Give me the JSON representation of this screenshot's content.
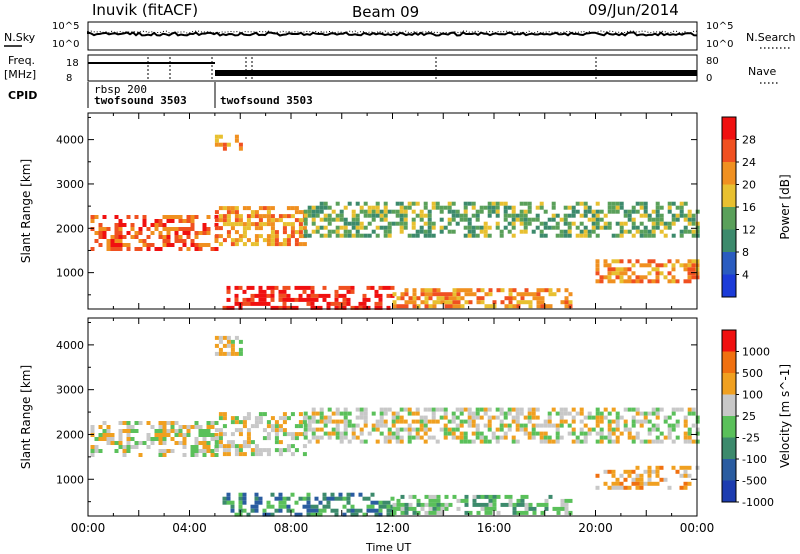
{
  "header": {
    "station": "Inuvik (fitACF)",
    "beam": "Beam 09",
    "date": "09/Jun/2014"
  },
  "summary": {
    "nsky_label": "N.Sky",
    "nsearch_label": "N.Search",
    "freq_label_line1": "Freq.",
    "freq_label_line2": "[MHz]",
    "nave_label": "Nave",
    "cpid_label": "CPID",
    "noise_ticks": [
      "10^5",
      "10^0"
    ],
    "freq_ticks": [
      "18",
      "8"
    ],
    "nave_ticks": [
      "80",
      "0"
    ],
    "cpid_segments": [
      {
        "line1": "rbsp 200",
        "line2": "twofsound 3503"
      },
      {
        "line1": "",
        "line2": "twofsound 3503"
      }
    ]
  },
  "chart_data": [
    {
      "type": "heatmap",
      "name": "power-panel",
      "ylabel": "Slant Range [km]",
      "y_ticks": [
        1000,
        2000,
        3000,
        4000
      ],
      "ylim": [
        180,
        4600
      ],
      "xlim": [
        0,
        24
      ],
      "colorbar": {
        "label": "Power [dB]",
        "ticks": [
          "4",
          "8",
          "12",
          "16",
          "20",
          "24",
          "28"
        ],
        "colors": [
          "#1c3cd8",
          "#2a5cc0",
          "#3c8a6c",
          "#5aa05a",
          "#e8c030",
          "#f09020",
          "#f05020",
          "#f01010"
        ]
      },
      "echo_bands": [
        {
          "t0": 0.1,
          "t1": 5.0,
          "r0": 1500,
          "r1": 2300,
          "level": 6
        },
        {
          "t0": 5.0,
          "t1": 8.5,
          "r0": 1600,
          "r1": 2500,
          "level": 5
        },
        {
          "t0": 8.5,
          "t1": 24.0,
          "r0": 1800,
          "r1": 2600,
          "level": 3
        },
        {
          "t0": 5.3,
          "t1": 12.0,
          "r0": 200,
          "r1": 700,
          "level": 7
        },
        {
          "t0": 12.0,
          "t1": 19.0,
          "r0": 250,
          "r1": 650,
          "level": 5
        },
        {
          "t0": 20.0,
          "t1": 24.0,
          "r0": 800,
          "r1": 1300,
          "level": 5
        },
        {
          "t0": 5.0,
          "t1": 6.0,
          "r0": 3800,
          "r1": 4200,
          "level": 5
        }
      ]
    },
    {
      "type": "heatmap",
      "name": "velocity-panel",
      "ylabel": "Slant Range [km]",
      "y_ticks": [
        1000,
        2000,
        3000,
        4000
      ],
      "ylim": [
        180,
        4600
      ],
      "xlim": [
        0,
        24
      ],
      "xlabel": "Time UT",
      "x_ticks": [
        "00:00",
        "04:00",
        "08:00",
        "12:00",
        "16:00",
        "20:00",
        "00:00"
      ],
      "colorbar": {
        "label": "Velocity [m s^-1]",
        "ticks": [
          "1000",
          "500",
          "100",
          "25",
          "-25",
          "-100",
          "-500",
          "-1000"
        ],
        "colors": [
          "#1c3cb0",
          "#2a5ca0",
          "#3c8a6c",
          "#5ac05a",
          "#c8c8c8",
          "#f0a020",
          "#f07010",
          "#f01010"
        ]
      },
      "echo_bands": [
        {
          "t0": 0.1,
          "t1": 5.0,
          "r0": 1500,
          "r1": 2300,
          "level": 4
        },
        {
          "t0": 5.0,
          "t1": 8.5,
          "r0": 1600,
          "r1": 2500,
          "level": 4
        },
        {
          "t0": 8.5,
          "t1": 24.0,
          "r0": 1800,
          "r1": 2600,
          "level": 4
        },
        {
          "t0": 5.3,
          "t1": 12.0,
          "r0": 200,
          "r1": 700,
          "level": 2
        },
        {
          "t0": 12.0,
          "t1": 19.0,
          "r0": 250,
          "r1": 650,
          "level": 3
        },
        {
          "t0": 20.0,
          "t1": 24.0,
          "r0": 800,
          "r1": 1300,
          "level": 5
        },
        {
          "t0": 5.0,
          "t1": 6.0,
          "r0": 3800,
          "r1": 4200,
          "level": 4
        }
      ]
    }
  ]
}
